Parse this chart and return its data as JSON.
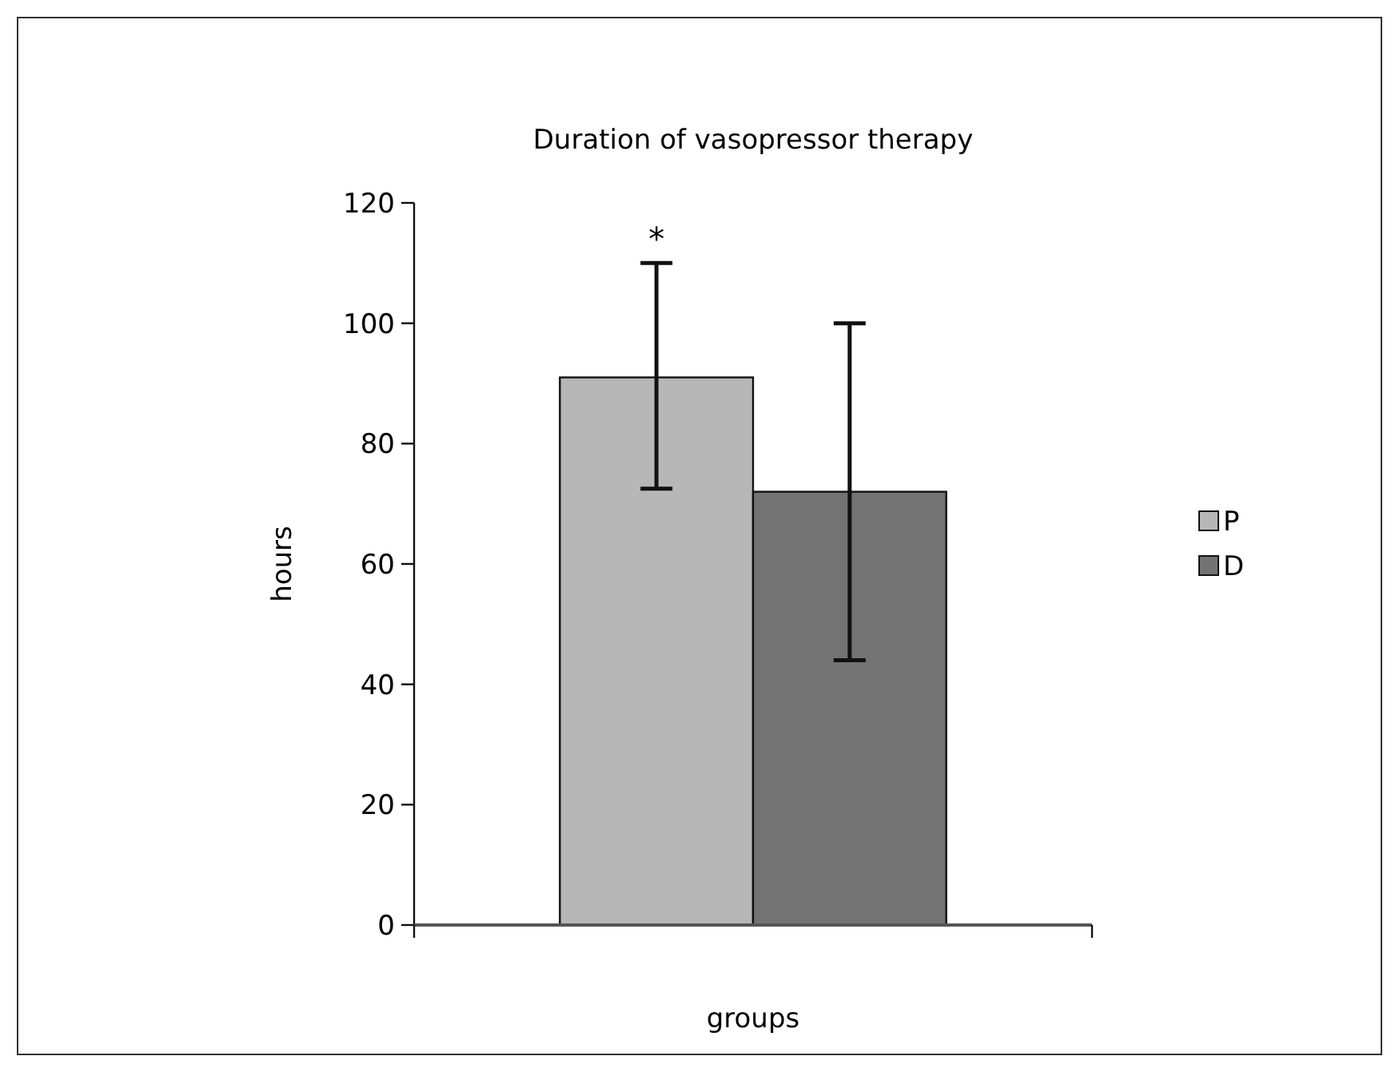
{
  "chart_data": {
    "type": "bar",
    "title": "Duration of vasopressor therapy",
    "xlabel": "groups",
    "ylabel": "hours",
    "categories": [
      null
    ],
    "series": [
      {
        "name": "P",
        "color": "#b7b7b7",
        "values": [
          91
        ],
        "errors": [
          [
            72.5,
            110
          ]
        ]
      },
      {
        "name": "D",
        "color": "#737373",
        "values": [
          72
        ],
        "errors": [
          [
            44,
            100
          ]
        ]
      }
    ],
    "ylim": [
      0,
      120
    ],
    "yticks": [
      0,
      20,
      40,
      60,
      80,
      100,
      120
    ],
    "grid": false,
    "legend": "right",
    "annotations": [
      "*"
    ]
  }
}
